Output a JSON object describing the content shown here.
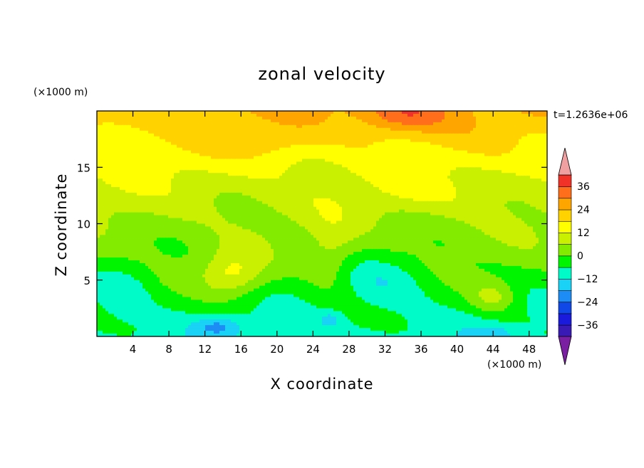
{
  "chart_data": {
    "type": "heatmap",
    "title": "zonal velocity",
    "xlabel": "X coordinate",
    "ylabel": "Z coordinate",
    "x_unit": "(×1000 m)",
    "y_unit": "(×1000 m)",
    "time_label": "t=1.2636e+06",
    "xlim": [
      0,
      50
    ],
    "ylim": [
      0,
      20
    ],
    "x_ticks": [
      4,
      8,
      12,
      16,
      20,
      24,
      28,
      32,
      36,
      40,
      44,
      48
    ],
    "y_ticks": [
      5,
      10,
      15
    ],
    "x_tick_labels": [
      "4",
      "8",
      "12",
      "16",
      "20",
      "24",
      "28",
      "32",
      "36",
      "40",
      "44",
      "48"
    ],
    "y_tick_labels": [
      "5",
      "10",
      "15"
    ],
    "colorbar": {
      "levels": [
        -42,
        -36,
        -30,
        -24,
        -18,
        -12,
        -6,
        0,
        6,
        12,
        18,
        24,
        30,
        36,
        42
      ],
      "labels": [
        "36",
        "24",
        "12",
        "0",
        "−12",
        "−24",
        "−36"
      ],
      "label_values": [
        36,
        24,
        12,
        0,
        -12,
        -24,
        -36
      ],
      "colors": [
        "#7b1fa2",
        "#3a1ab4",
        "#1a1adc",
        "#0f48e6",
        "#1e8cf5",
        "#19d2f5",
        "#00fac8",
        "#00f500",
        "#82eb00",
        "#c8f000",
        "#ffff00",
        "#ffd200",
        "#ffa500",
        "#ff6e1a",
        "#f03228",
        "#f0a0a0"
      ],
      "extend": "both"
    },
    "grid": false,
    "description_points": [
      {
        "x": 34,
        "z": 19,
        "u": 28
      },
      {
        "x": 10,
        "z": 18,
        "u": 22
      },
      {
        "x": 15,
        "z": 6,
        "u": 10
      },
      {
        "x": 13,
        "z": 1,
        "u": -22
      },
      {
        "x": 32,
        "z": 5,
        "u": -10
      }
    ]
  }
}
